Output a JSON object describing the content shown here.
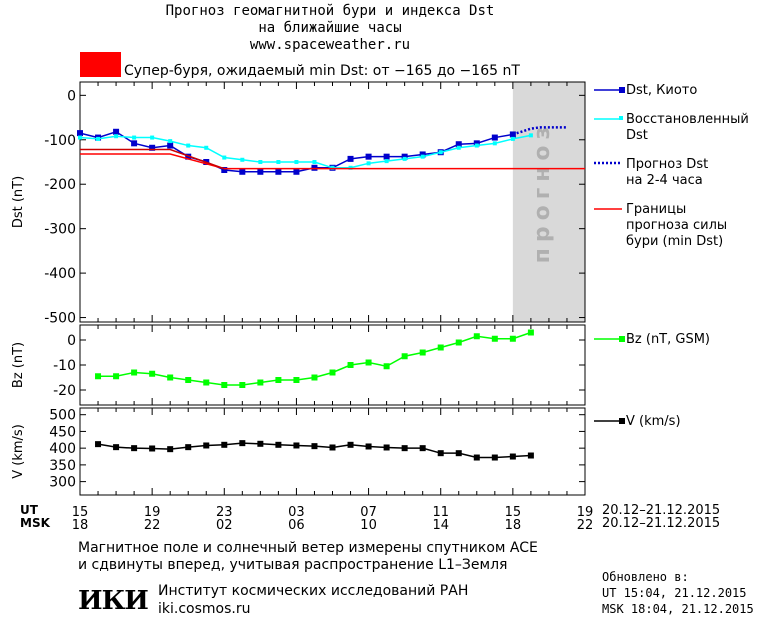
{
  "header": {
    "title_line1": "Прогноз геомагнитной бури и индекса Dst",
    "title_line2": "на ближайшие часы",
    "site": "www.spaceweather.ru"
  },
  "storm": {
    "color": "#ff0000",
    "text": "Супер-буря, ожидаемый min Dst: от −165 до −165 nT"
  },
  "legend": {
    "dst_kyoto": "Dst, Киото",
    "restored_line1": "Восстановленный",
    "restored_line2": "Dst",
    "forecast_line1": "Прогноз Dst",
    "forecast_line2": "на 2-4 часа",
    "bounds_line1": "Границы",
    "bounds_line2": "прогноза силы",
    "bounds_line3": "бури (min Dst)",
    "bz": "Bz (nT, GSM)",
    "v": "V (km/s)"
  },
  "forecast_label": "прогноз",
  "time_axis": {
    "ut_label": "UT",
    "msk_label": "MSK",
    "ut_ticks": [
      "15",
      "19",
      "23",
      "03",
      "07",
      "11",
      "15",
      "19"
    ],
    "msk_ticks": [
      "18",
      "22",
      "02",
      "06",
      "10",
      "14",
      "18",
      "22"
    ],
    "range": "20.12–21.12.2015"
  },
  "footer": {
    "line1": "Магнитное поле и солнечный ветер измерены спутником ACE",
    "line2": "и сдвинуты вперед, учитывая распространение L1–Земля",
    "logo": "ИКИ",
    "institute": "Институт космических исследований РАН",
    "site": "iki.cosmos.ru",
    "updated_label": "Обновлено в:",
    "updated_ut": "UT  15:04, 21.12.2015",
    "updated_msk": "MSK 18:04, 21.12.2015"
  },
  "chart_data": [
    {
      "type": "line",
      "ylabel": "Dst (nT)",
      "xlim": [
        15,
        43
      ],
      "ylim": [
        -510,
        30
      ],
      "yticks": [
        0,
        -100,
        -200,
        -300,
        -400,
        -500
      ],
      "forecast_region": [
        39,
        43
      ],
      "series": [
        {
          "name": "Dst, Киото",
          "color": "#0000cc",
          "x": [
            15,
            16,
            17,
            18,
            19,
            20,
            21,
            22,
            23,
            24,
            25,
            26,
            27,
            28,
            29,
            30,
            31,
            32,
            33,
            34,
            35,
            36,
            37,
            38,
            39
          ],
          "y": [
            -85,
            -95,
            -82,
            -108,
            -118,
            -113,
            -138,
            -150,
            -168,
            -172,
            -172,
            -172,
            -172,
            -163,
            -163,
            -143,
            -138,
            -138,
            -138,
            -133,
            -128,
            -110,
            -108,
            -95,
            -88
          ]
        },
        {
          "name": "Восстановленный Dst",
          "color": "#00ffff",
          "x": [
            15,
            16,
            17,
            18,
            19,
            20,
            21,
            22,
            23,
            24,
            25,
            26,
            27,
            28,
            29,
            30,
            31,
            32,
            33,
            34,
            35,
            36,
            37,
            38,
            39,
            40
          ],
          "y": [
            -95,
            -98,
            -92,
            -95,
            -95,
            -103,
            -113,
            -118,
            -140,
            -145,
            -150,
            -150,
            -150,
            -150,
            -163,
            -163,
            -153,
            -148,
            -143,
            -138,
            -128,
            -118,
            -113,
            -108,
            -98,
            -90
          ]
        },
        {
          "name": "Прогноз Dst на 2-4 часа",
          "color": "#0000cc",
          "x": [
            39,
            40,
            40.5,
            41,
            42
          ],
          "y": [
            -88,
            -75,
            -72,
            -72,
            -72
          ]
        },
        {
          "name": "Границы прогноза силы бури (min Dst)",
          "color": "#ff0000",
          "x": [
            15,
            20,
            23,
            43
          ],
          "y": [
            -132,
            -132,
            -165,
            -165
          ]
        },
        {
          "color": "#cc0000",
          "x": [
            15,
            20,
            23
          ],
          "y": [
            -122,
            -122,
            -165
          ]
        }
      ]
    },
    {
      "type": "line",
      "ylabel": "Bz (nT)",
      "xlim": [
        15,
        43
      ],
      "ylim": [
        -26,
        6
      ],
      "yticks": [
        0,
        -10,
        -20
      ],
      "series": [
        {
          "name": "Bz (nT, GSM)",
          "color": "#00ff00",
          "x": [
            16,
            17,
            18,
            19,
            20,
            21,
            22,
            23,
            24,
            25,
            26,
            27,
            28,
            29,
            30,
            31,
            32,
            33,
            34,
            35,
            36,
            37,
            38,
            39,
            40
          ],
          "y": [
            -14.5,
            -14.5,
            -13,
            -13.5,
            -15,
            -16,
            -17,
            -18,
            -18,
            -17,
            -16,
            -16,
            -15,
            -13,
            -10,
            -9,
            -10.5,
            -6.5,
            -5,
            -3,
            -1,
            1.5,
            0.5,
            0.5,
            3
          ]
        }
      ]
    },
    {
      "type": "line",
      "ylabel": "V (km/s)",
      "xlim": [
        15,
        43
      ],
      "ylim": [
        260,
        520
      ],
      "yticks": [
        500,
        450,
        400,
        350,
        300
      ],
      "series": [
        {
          "name": "V (km/s)",
          "color": "#000000",
          "x": [
            16,
            17,
            18,
            19,
            20,
            21,
            22,
            23,
            24,
            25,
            26,
            27,
            28,
            29,
            30,
            31,
            32,
            33,
            34,
            35,
            36,
            37,
            38,
            39,
            40
          ],
          "y": [
            412,
            403,
            400,
            399,
            397,
            403,
            408,
            410,
            415,
            413,
            410,
            408,
            406,
            402,
            410,
            405,
            402,
            400,
            400,
            385,
            385,
            372,
            372,
            375,
            378
          ]
        }
      ]
    }
  ]
}
